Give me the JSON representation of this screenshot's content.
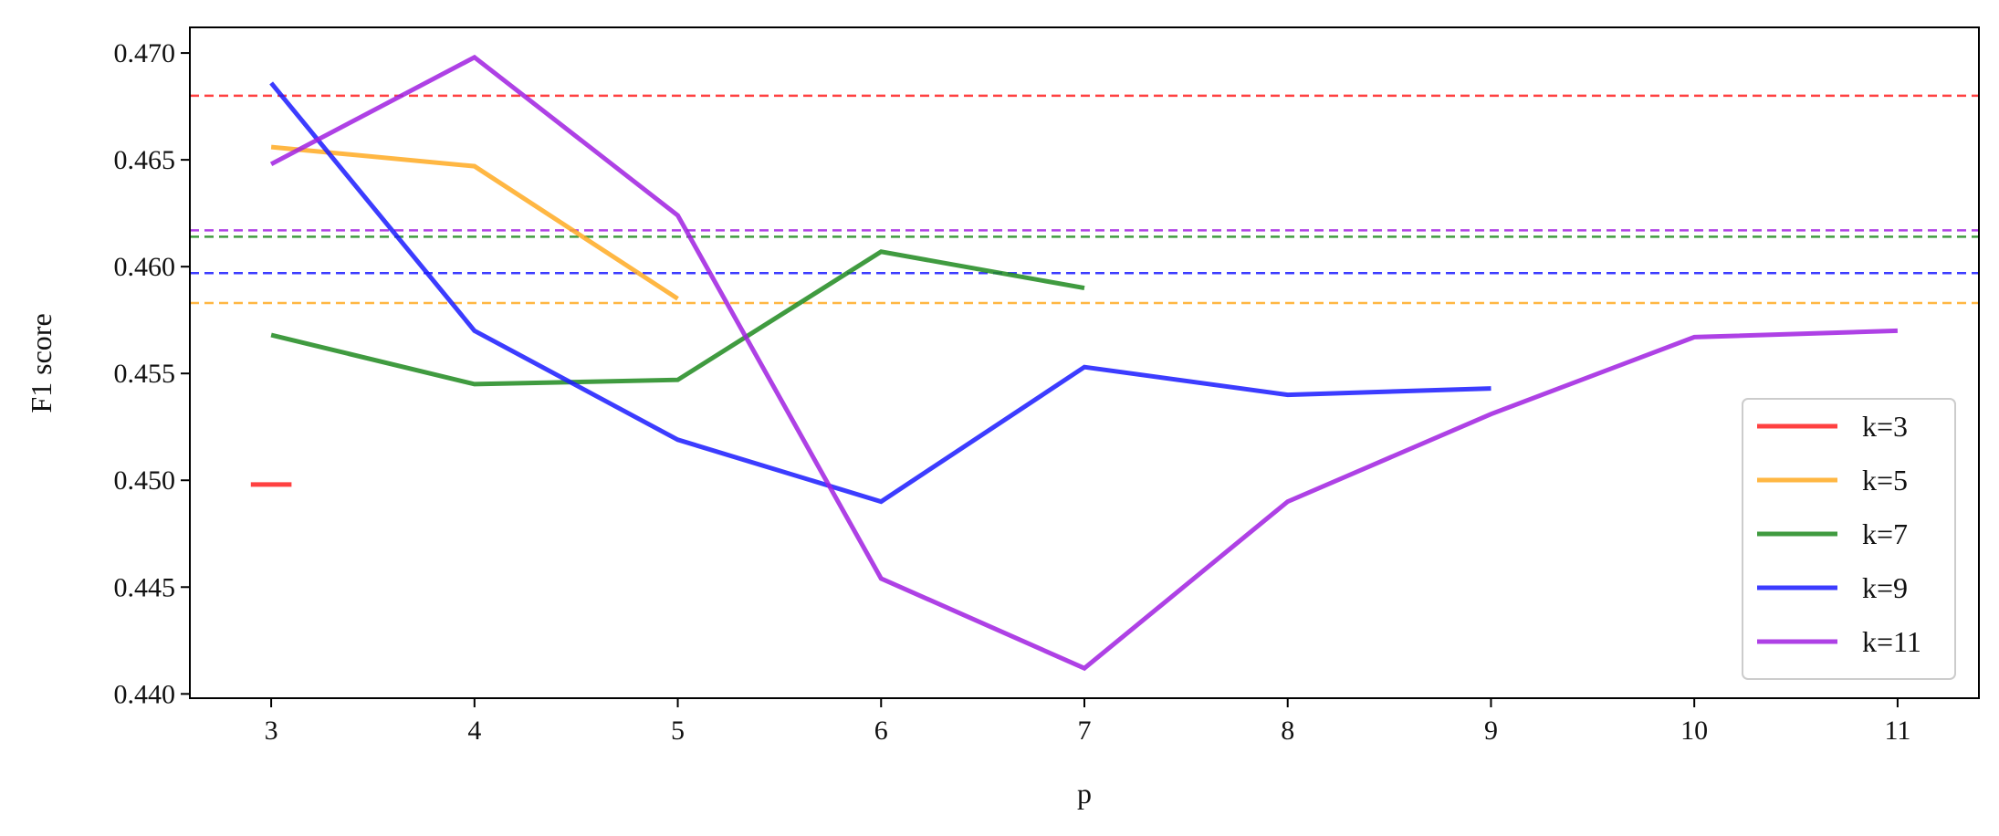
{
  "chart_data": {
    "type": "line",
    "title": "",
    "xlabel": "p",
    "ylabel": "F1 score",
    "xlim": [
      2.6,
      11.4
    ],
    "ylim": [
      0.4398,
      0.4712
    ],
    "x_ticks": [
      3,
      4,
      5,
      6,
      7,
      8,
      9,
      10,
      11
    ],
    "x_tick_labels": [
      "3",
      "4",
      "5",
      "6",
      "7",
      "8",
      "9",
      "10",
      "11"
    ],
    "y_ticks": [
      0.44,
      0.445,
      0.45,
      0.455,
      0.46,
      0.465,
      0.47
    ],
    "y_tick_labels": [
      "0.440",
      "0.445",
      "0.450",
      "0.455",
      "0.460",
      "0.465",
      "0.470"
    ],
    "grid": false,
    "legend_position": "lower-right",
    "series": [
      {
        "name": "k=3",
        "color": "#ff2020",
        "x": [
          2.9,
          3.1
        ],
        "values": [
          0.4498,
          0.4498
        ],
        "reference": 0.468
      },
      {
        "name": "k=5",
        "color": "#ffaa22",
        "x": [
          3,
          4,
          5
        ],
        "values": [
          0.4656,
          0.4647,
          0.4585
        ],
        "reference": 0.4583
      },
      {
        "name": "k=7",
        "color": "#1f8a1f",
        "x": [
          3,
          4,
          5,
          6,
          7
        ],
        "values": [
          0.4568,
          0.4545,
          0.4547,
          0.4607,
          0.459
        ],
        "reference": 0.4614
      },
      {
        "name": "k=9",
        "color": "#1a1aff",
        "x": [
          3,
          4,
          5,
          6,
          7,
          8,
          9
        ],
        "values": [
          0.4686,
          0.457,
          0.4519,
          0.449,
          0.4553,
          0.454,
          0.4543
        ],
        "reference": 0.4597
      },
      {
        "name": "k=11",
        "color": "#a020e0",
        "x": [
          3,
          4,
          5,
          6,
          7,
          8,
          9,
          10,
          11
        ],
        "values": [
          0.4648,
          0.4698,
          0.4624,
          0.4454,
          0.4412,
          0.449,
          0.4531,
          0.4567,
          0.457
        ],
        "reference": 0.4617
      }
    ]
  }
}
